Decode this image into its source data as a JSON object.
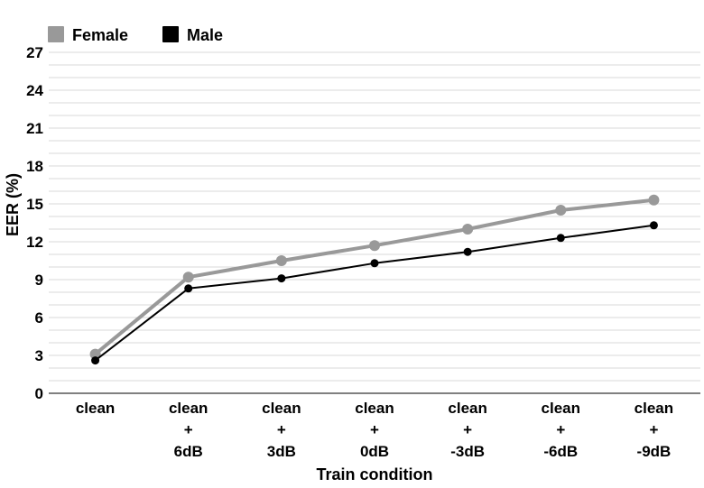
{
  "chart_data": {
    "type": "line",
    "title": "",
    "xlabel": "Train condition",
    "ylabel": "EER (%)",
    "ylim": [
      0,
      27
    ],
    "yticks": [
      "0",
      "3",
      "6",
      "9",
      "12",
      "15",
      "18",
      "21",
      "24",
      "27"
    ],
    "grid": true,
    "legend_position": "top-left",
    "categories": [
      [
        "clean"
      ],
      [
        "clean",
        "+",
        "6dB"
      ],
      [
        "clean",
        "+",
        "3dB"
      ],
      [
        "clean",
        "+",
        "0dB"
      ],
      [
        "clean",
        "+",
        "-3dB"
      ],
      [
        "clean",
        "+",
        "-6dB"
      ],
      [
        "clean",
        "+",
        "-9dB"
      ]
    ],
    "series": [
      {
        "name": "Female",
        "color": "#999999",
        "values": [
          3.1,
          9.2,
          10.5,
          11.7,
          13.0,
          14.5,
          15.3
        ]
      },
      {
        "name": "Male",
        "color": "#000000",
        "values": [
          2.6,
          8.3,
          9.1,
          10.3,
          11.2,
          12.3,
          13.3
        ]
      }
    ]
  }
}
